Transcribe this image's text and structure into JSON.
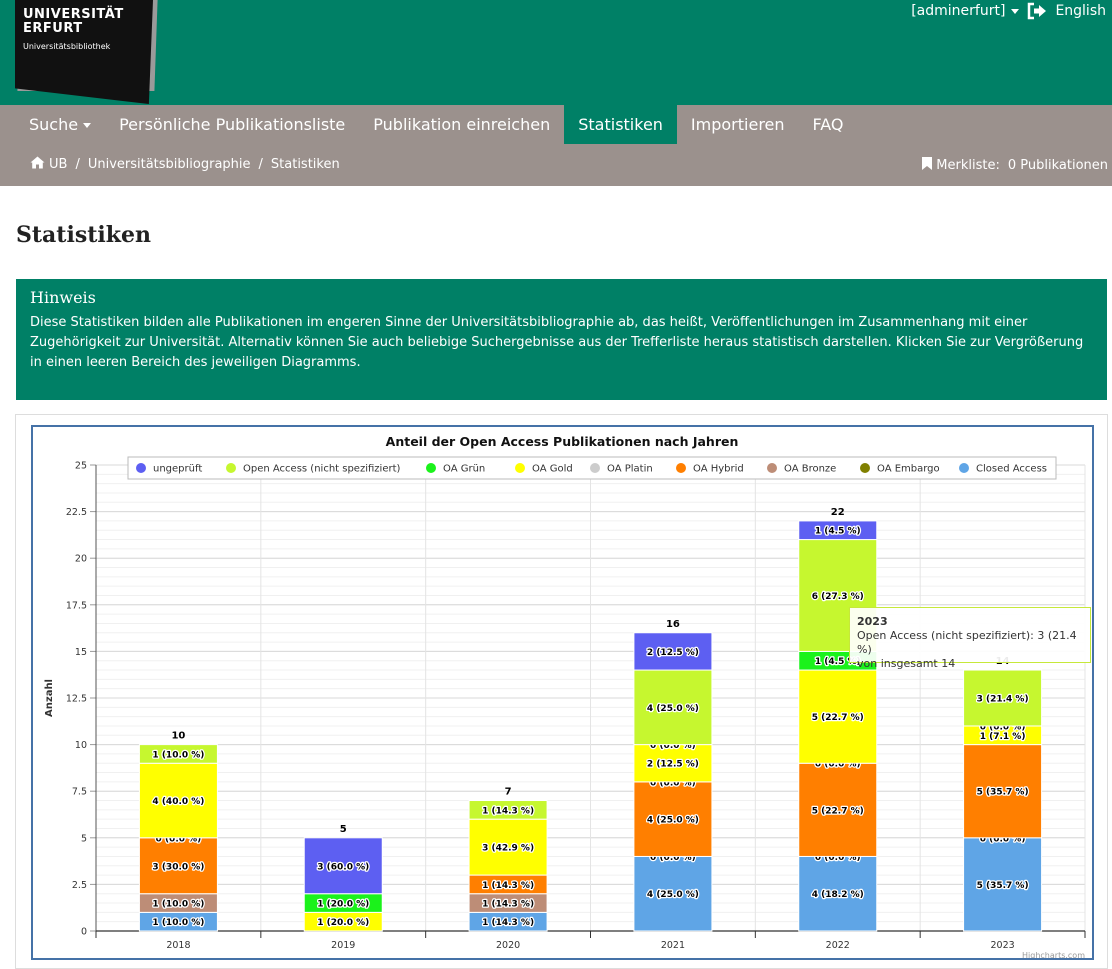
{
  "header": {
    "logo_line1": "UNIVERSITÄT",
    "logo_line2": "ERFURT",
    "logo_line3": "Universitätsbibliothek",
    "user": "[adminerfurt]",
    "language": "English",
    "icons": {
      "user_caret": "caret-down-icon",
      "signout": "sign-out-icon"
    }
  },
  "nav": {
    "items": [
      {
        "label": "Suche",
        "has_dropdown": true
      },
      {
        "label": "Persönliche Publikationsliste"
      },
      {
        "label": "Publikation einreichen"
      },
      {
        "label": "Statistiken",
        "active": true
      },
      {
        "label": "Importieren"
      },
      {
        "label": "FAQ"
      }
    ]
  },
  "breadcrumb": {
    "items": [
      "UB",
      "Universitätsbibliographie",
      "Statistiken"
    ],
    "separator": "/",
    "home_icon": "home-icon"
  },
  "merkliste": {
    "label": "Merkliste:",
    "count_text": "0 Publikationen",
    "icon": "bookmark-icon"
  },
  "page_title": "Statistiken",
  "hinweis": {
    "title": "Hinweis",
    "text": "Diese Statistiken bilden alle Publikationen im engeren Sinne der Universitätsbibliographie ab, das heißt, Veröffentlichungen im Zusammenhang mit einer Zugehörigkeit zur Universität. Alternativ können Sie auch beliebige Suchergebnisse aus der Trefferliste heraus statistisch darstellen. Klicken Sie zur Vergrößerung in einen leeren Bereich des jeweiligen Diagramms."
  },
  "chart_data": {
    "type": "bar",
    "stacked": true,
    "title": "Anteil der Open Access Publikationen nach Jahren",
    "ylabel": "Anzahl",
    "ylim": [
      0,
      25
    ],
    "yticks": [
      0,
      2.5,
      5,
      7.5,
      10,
      12.5,
      15,
      17.5,
      20,
      22.5,
      25
    ],
    "ytick_labels": [
      "0",
      "2.5",
      "5",
      "7.5",
      "10",
      "12.5",
      "15",
      "17.5",
      "20",
      "22.5",
      "25"
    ],
    "categories": [
      "2018",
      "2019",
      "2020",
      "2021",
      "2022",
      "2023"
    ],
    "totals": [
      10,
      5,
      7,
      16,
      22,
      14
    ],
    "legend_position": "top",
    "grid": true,
    "credits": "Highcharts.com",
    "series": [
      {
        "name": "ungeprüft",
        "color": "#5d5ff2",
        "values": [
          0,
          3,
          0,
          2,
          1,
          0
        ],
        "labels": [
          "",
          "3 (60.0 %)",
          "",
          "2 (12.5 %)",
          "1 (4.5 %)",
          ""
        ]
      },
      {
        "name": "Open Access (nicht spezifiziert)",
        "color": "#c6f72f",
        "values": [
          1,
          0,
          1,
          4,
          6,
          3
        ],
        "labels": [
          "1 (10.0 %)",
          "",
          "1 (14.3 %)",
          "4 (25.0 %)",
          "6 (27.3 %)",
          "3 (21.4 %)"
        ]
      },
      {
        "name": "OA Grün",
        "color": "#1bf21b",
        "values": [
          0,
          1,
          0,
          0,
          1,
          0
        ],
        "labels": [
          "",
          "1 (20.0 %)",
          "",
          "0 (0.0 %)",
          "1 (4.5 %)",
          "0 (0.0 %)"
        ]
      },
      {
        "name": "OA Gold",
        "color": "#ffff00",
        "values": [
          4,
          1,
          3,
          2,
          5,
          1
        ],
        "labels": [
          "4 (40.0 %)",
          "1 (20.0 %)",
          "3 (42.9 %)",
          "2 (12.5 %)",
          "5 (22.7 %)",
          "1 (7.1 %)"
        ]
      },
      {
        "name": "OA Platin",
        "color": "#cccccc",
        "values": [
          0,
          0,
          0,
          0,
          0,
          0
        ],
        "labels": [
          "0 (0.0 %)",
          "",
          "",
          "0 (0.0 %)",
          "0 (0.0 %)",
          ""
        ]
      },
      {
        "name": "OA Hybrid",
        "color": "#ff7f00",
        "values": [
          3,
          0,
          1,
          4,
          5,
          5
        ],
        "labels": [
          "3 (30.0 %)",
          "",
          "1 (14.3 %)",
          "4 (25.0 %)",
          "5 (22.7 %)",
          "5 (35.7 %)"
        ]
      },
      {
        "name": "OA Bronze",
        "color": "#bd8d77",
        "values": [
          1,
          0,
          1,
          0,
          0,
          0
        ],
        "labels": [
          "1 (10.0 %)",
          "",
          "1 (14.3 %)",
          "0 (0.0 %)",
          "0 (0.0 %)",
          "0 (0.0 %)"
        ]
      },
      {
        "name": "OA Embargo",
        "color": "#808000",
        "values": [
          0,
          0,
          0,
          0,
          0,
          0
        ],
        "labels": [
          "",
          "",
          "",
          "",
          "",
          ""
        ]
      },
      {
        "name": "Closed Access",
        "color": "#5fa5e6",
        "values": [
          1,
          0,
          1,
          4,
          4,
          5
        ],
        "labels": [
          "1 (10.0 %)",
          "",
          "1 (14.3 %)",
          "4 (25.0 %)",
          "4 (18.2 %)",
          "5 (35.7 %)"
        ]
      }
    ],
    "tooltip": {
      "title": "2023",
      "line1": "Open Access (nicht spezifiziert): 3 (21.4 %)",
      "line2": "von insgesamt 14"
    }
  }
}
